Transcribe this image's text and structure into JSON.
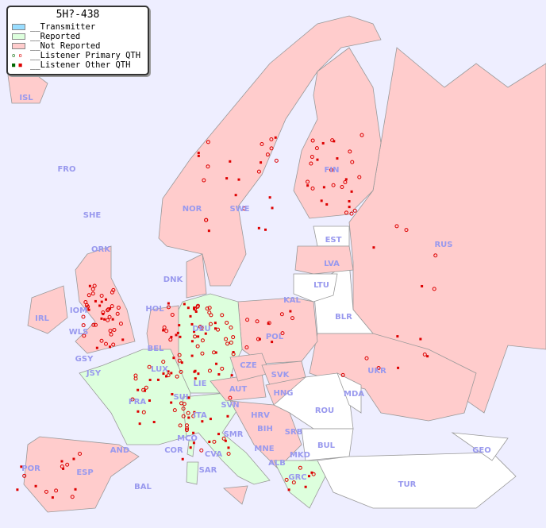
{
  "legend": {
    "title": "5H?-438",
    "items": [
      {
        "label": "__Transmitter",
        "color": "#99ddff"
      },
      {
        "label": "__Reported",
        "color": "#ddffdd"
      },
      {
        "label": "__Not Reported",
        "color": "#ffcccc"
      },
      {
        "label": "__Listener Primary QTH",
        "color": "#cc0000"
      },
      {
        "label": "__Listener Other QTH",
        "color": "#cc0000"
      }
    ]
  },
  "colors": {
    "sea": "#eeeeff",
    "reported": "#ddffdd",
    "not_reported": "#ffcccc",
    "no_data": "#ffffff",
    "marker": "#dd0000"
  },
  "countries": [
    "ISL",
    "FRO",
    "SHE",
    "ORK",
    "NOR",
    "SWE",
    "FIN",
    "EST",
    "LVA",
    "RUS",
    "LTU",
    "KAL",
    "DNK",
    "HOL",
    "BEL",
    "DEU",
    "POL",
    "BLR",
    "IRL",
    "IOM",
    "WLS",
    "GSY",
    "JSY",
    "LUX",
    "CZE",
    "SVK",
    "UKR",
    "FRA",
    "SUI",
    "LIE",
    "AUT",
    "HNG",
    "MDA",
    "ROU",
    "SVN",
    "HRV",
    "ITA",
    "BIH",
    "SRB",
    "BUL",
    "MCO",
    "COR",
    "CVA",
    "SMR",
    "MNE",
    "ALB",
    "MKD",
    "GEO",
    "POR",
    "ESP",
    "AND",
    "SAR",
    "BAL",
    "GRC",
    "TUR"
  ]
}
